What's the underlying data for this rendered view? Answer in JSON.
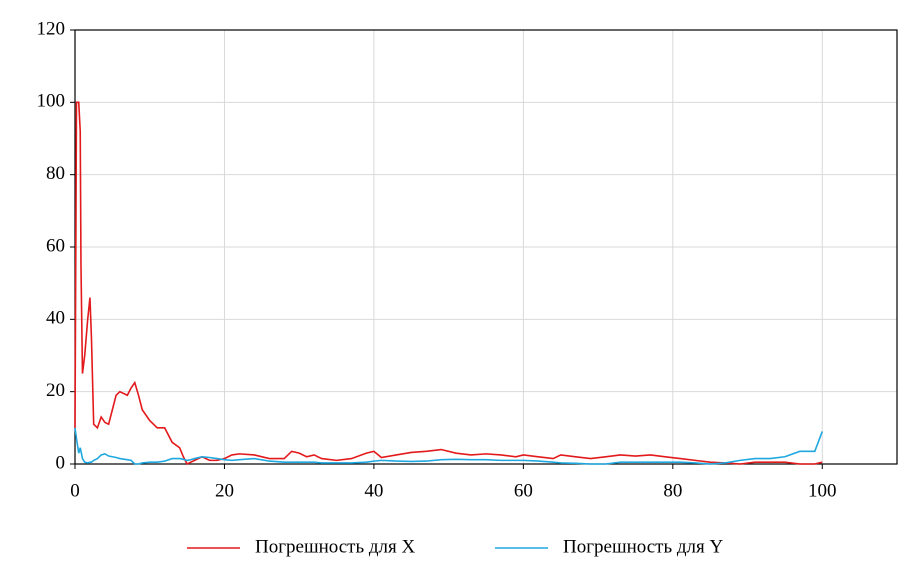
{
  "chart_data": {
    "type": "line",
    "x": [
      0,
      0.2,
      0.5,
      0.7,
      0.8,
      1,
      1.3,
      1.7,
      2,
      2.2,
      2.5,
      3,
      3.5,
      4,
      4.5,
      5,
      5.5,
      6,
      7,
      7.5,
      8,
      8.5,
      9,
      10,
      11,
      12,
      13,
      14,
      14.5,
      15,
      15.5,
      16,
      17,
      18,
      19,
      20,
      21,
      22,
      24,
      26,
      28,
      29,
      30,
      31,
      32,
      33,
      35,
      37,
      39,
      40,
      41,
      43,
      45,
      47,
      49,
      51,
      53,
      55,
      57,
      59,
      60,
      62,
      64,
      65,
      67,
      69,
      71,
      73,
      75,
      77,
      79,
      81,
      83,
      85,
      87,
      89,
      91,
      93,
      95,
      97,
      99,
      100
    ],
    "series": [
      {
        "name": "Погрешность для X",
        "color": "#e31a1c",
        "values": [
          10,
          100,
          100,
          92,
          55,
          25,
          30,
          40,
          46,
          35,
          11,
          10,
          13,
          11.5,
          11,
          15,
          19,
          20,
          19,
          21,
          22.5,
          19,
          15,
          12,
          10,
          10,
          6,
          4.5,
          2,
          0,
          0.5,
          1,
          2,
          1,
          1,
          1.5,
          2.5,
          2.8,
          2.5,
          1.5,
          1.5,
          3.5,
          3,
          2,
          2.5,
          1.5,
          1,
          1.5,
          3,
          3.5,
          1.8,
          2.5,
          3.2,
          3.5,
          4,
          3,
          2.5,
          2.8,
          2.5,
          2,
          2.5,
          2,
          1.5,
          2.5,
          2,
          1.5,
          2,
          2.5,
          2.2,
          2.5,
          2,
          1.5,
          1,
          0.5,
          0.3,
          0,
          0.5,
          0.5,
          0.5,
          0,
          0,
          0.5
        ]
      },
      {
        "name": "Погрешность для Y",
        "color": "#1fa8e0",
        "values": [
          10,
          7,
          3,
          4.5,
          3.5,
          1.5,
          0.5,
          0.3,
          0.5,
          0.5,
          1,
          1.5,
          2.5,
          2.8,
          2.2,
          2,
          1.8,
          1.5,
          1.2,
          1,
          0,
          0,
          0.3,
          0.5,
          0.5,
          0.8,
          1.5,
          1.5,
          1.3,
          1,
          1.2,
          1.5,
          2,
          1.8,
          1.5,
          1.2,
          1,
          1.2,
          1.5,
          0.8,
          0.5,
          0.5,
          0.5,
          0.5,
          0.5,
          0.3,
          0.3,
          0.3,
          0.5,
          0.8,
          1,
          0.8,
          0.7,
          0.8,
          1.2,
          1.3,
          1.2,
          1.2,
          1,
          1,
          1,
          0.8,
          0.5,
          0.3,
          0.2,
          0,
          0,
          0.5,
          0.5,
          0.5,
          0.5,
          0.5,
          0.3,
          0,
          0.3,
          1,
          1.5,
          1.5,
          2,
          3.5,
          3.5,
          9
        ]
      }
    ],
    "xlim": [
      0,
      110
    ],
    "xticks": [
      0,
      20,
      40,
      60,
      80,
      100
    ],
    "ylim": [
      0,
      120
    ],
    "yticks": [
      0,
      20,
      40,
      60,
      80,
      100,
      120
    ],
    "grid": true,
    "legend": "bottom"
  }
}
